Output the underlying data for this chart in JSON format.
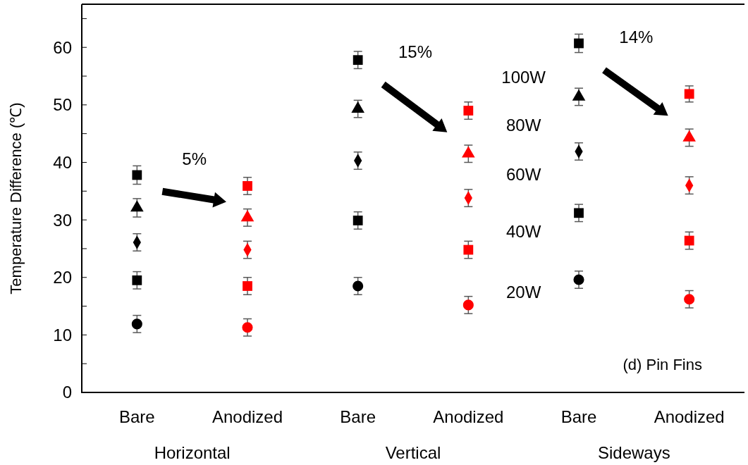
{
  "chart_data": {
    "type": "scatter",
    "ylabel": "Temperature Difference (℃)",
    "categories": [
      "Bare",
      "Anodized",
      "Bare",
      "Anodized",
      "Bare",
      "Anodized"
    ],
    "ylim": [
      0,
      67.5
    ],
    "yticks": [
      0,
      {
        "value": 5,
        "label": null
      },
      10,
      {
        "value": 15,
        "label": null
      },
      20,
      {
        "value": 25,
        "label": null
      },
      30,
      {
        "value": 35,
        "label": null
      },
      40,
      {
        "value": 45,
        "label": null
      },
      50,
      {
        "value": 55,
        "label": null
      },
      60,
      {
        "value": 65,
        "label": null
      }
    ],
    "grid": false,
    "legend": false,
    "series": [
      {
        "name": "100W",
        "marker": "square",
        "colors": [
          "#000000",
          "#ff0000",
          "#000000",
          "#ff0000",
          "#000000",
          "#ff0000"
        ],
        "values": [
          37.8,
          35.9,
          57.8,
          49.0,
          60.7,
          51.9
        ],
        "errors": [
          1.6,
          1.5,
          1.5,
          1.5,
          1.6,
          1.4
        ]
      },
      {
        "name": "80W",
        "marker": "triangle",
        "colors": [
          "#000000",
          "#ff0000",
          "#000000",
          "#ff0000",
          "#000000",
          "#ff0000"
        ],
        "values": [
          32.1,
          30.4,
          49.3,
          41.5,
          51.4,
          44.3
        ],
        "errors": [
          1.6,
          1.5,
          1.5,
          1.5,
          1.5,
          1.5
        ]
      },
      {
        "name": "60W",
        "marker": "diamond",
        "colors": [
          "#000000",
          "#ff0000",
          "#000000",
          "#ff0000",
          "#000000",
          "#ff0000"
        ],
        "values": [
          26.1,
          24.8,
          40.3,
          33.8,
          41.9,
          36.0
        ],
        "errors": [
          1.5,
          1.5,
          1.5,
          1.5,
          1.5,
          1.5
        ]
      },
      {
        "name": "40W",
        "marker": "square",
        "colors": [
          "#000000",
          "#ff0000",
          "#000000",
          "#ff0000",
          "#000000",
          "#ff0000"
        ],
        "values": [
          19.5,
          18.5,
          29.9,
          24.8,
          31.2,
          26.4
        ],
        "errors": [
          1.5,
          1.5,
          1.5,
          1.5,
          1.5,
          1.5
        ]
      },
      {
        "name": "20W",
        "marker": "circle",
        "colors": [
          "#000000",
          "#ff0000",
          "#000000",
          "#ff0000",
          "#000000",
          "#ff0000"
        ],
        "values": [
          11.9,
          11.3,
          18.5,
          15.2,
          19.6,
          16.2
        ],
        "errors": [
          1.5,
          1.5,
          1.5,
          1.5,
          1.5,
          1.5
        ]
      }
    ],
    "annotations": [
      "5%",
      "15%",
      "14%",
      "Horizontal",
      "Vertical",
      "Sideways",
      "(d) Pin Fins"
    ]
  }
}
